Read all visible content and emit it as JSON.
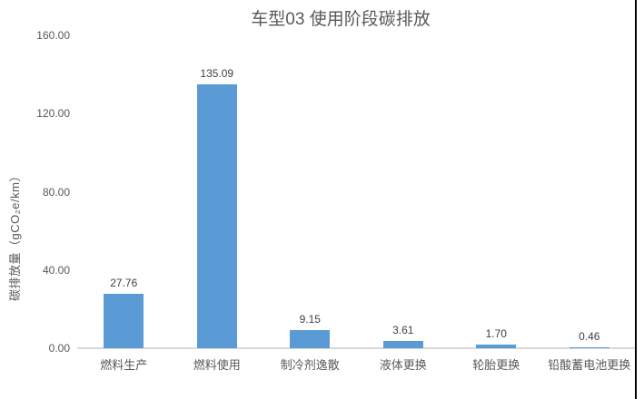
{
  "chart_data": {
    "type": "bar",
    "title": "车型03 使用阶段碳排放",
    "ylabel": "碳排放量（gCO₂e/km）",
    "xlabel": "",
    "categories": [
      "燃料生产",
      "燃料使用",
      "制冷剂逸散",
      "液体更换",
      "轮胎更换",
      "铅酸蓄电池更换"
    ],
    "values": [
      27.76,
      135.09,
      9.15,
      3.61,
      1.7,
      0.46
    ],
    "value_labels": [
      "27.76",
      "135.09",
      "9.15",
      "3.61",
      "1.70",
      "0.46"
    ],
    "yticks": [
      {
        "value": 0,
        "label": "0.00"
      },
      {
        "value": 40,
        "label": "40.00"
      },
      {
        "value": 80,
        "label": "80.00"
      },
      {
        "value": 120,
        "label": "120.00"
      },
      {
        "value": 160,
        "label": "160.00"
      }
    ],
    "ylim": [
      0,
      160
    ],
    "grid": false,
    "legend": false,
    "colors": {
      "bar": "#5B9BD5",
      "axis_line": "#D9D9D9",
      "axis_text": "#595959",
      "value_text": "#404040",
      "frame_border": "#000000",
      "background": "#FFFFFF"
    }
  }
}
